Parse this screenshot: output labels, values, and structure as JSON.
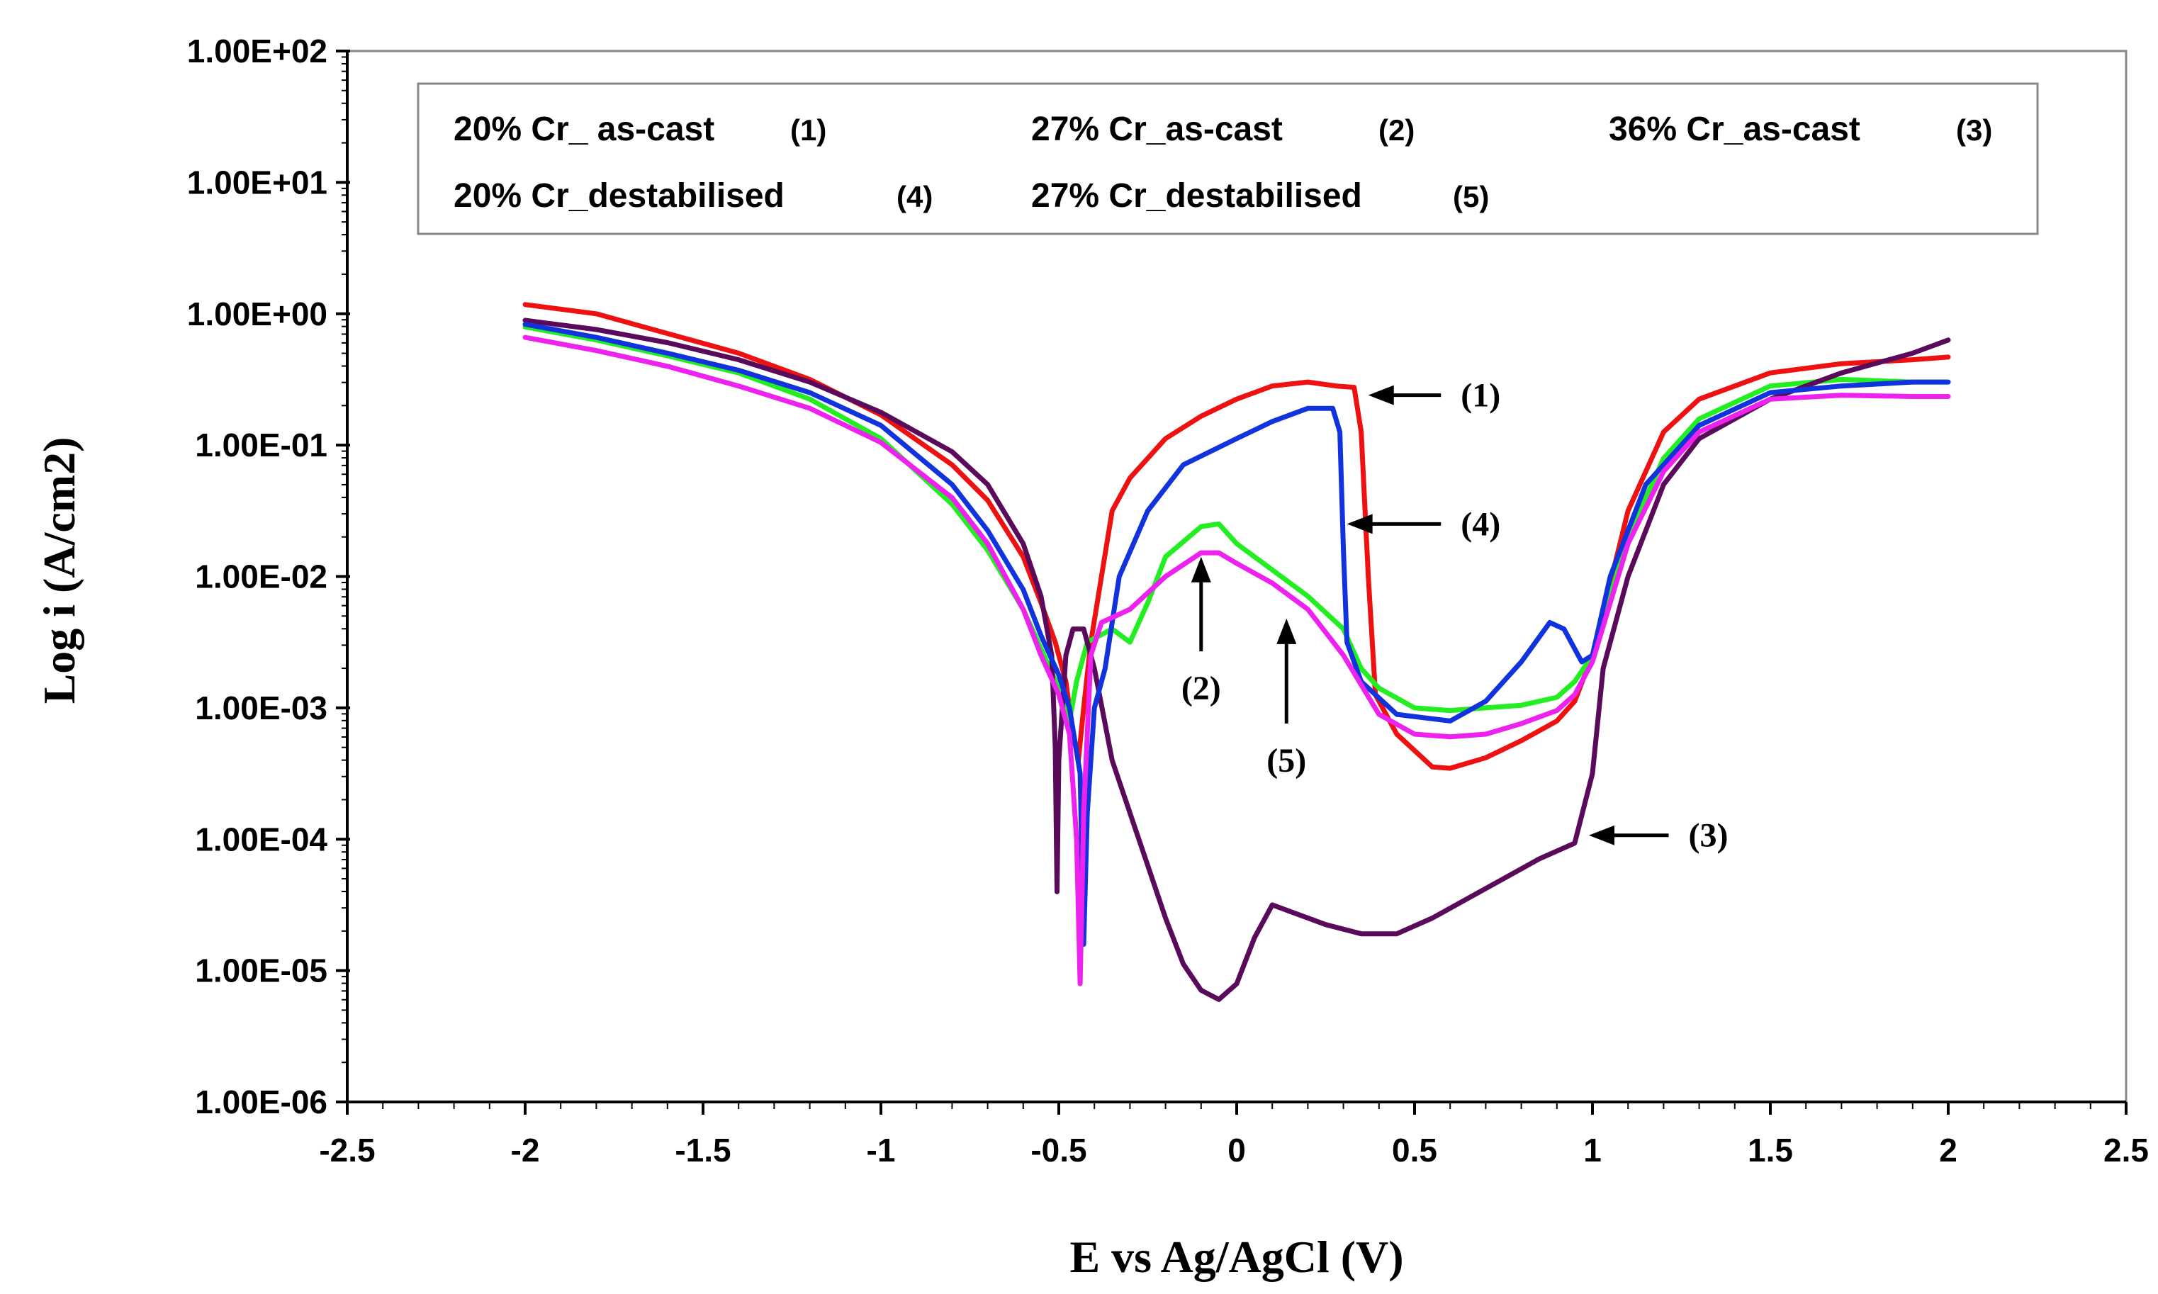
{
  "chart_data": {
    "type": "line",
    "title": "",
    "xlabel": "E vs Ag/AgCl (V)",
    "ylabel": "Log i (A/cm2)",
    "xlim": [
      -2.5,
      2.5
    ],
    "ylim_log10": [
      -6,
      2
    ],
    "x_ticks": [
      -2.5,
      -2,
      -1.5,
      -1,
      -0.5,
      0,
      0.5,
      1,
      1.5,
      2,
      2.5
    ],
    "x_tick_labels": [
      "-2.5",
      "-2",
      "-1.5",
      "-1",
      "-0.5",
      "0",
      "0.5",
      "1",
      "1.5",
      "2",
      "2.5"
    ],
    "y_ticks_log10": [
      2,
      1,
      0,
      -1,
      -2,
      -3,
      -4,
      -5,
      -6
    ],
    "y_tick_labels": [
      "1.00E+02",
      "1.00E+01",
      "1.00E+00",
      "1.00E-01",
      "1.00E-02",
      "1.00E-03",
      "1.00E-04",
      "1.00E-05",
      "1.00E-06"
    ],
    "legend": {
      "placement": "top",
      "entries": [
        {
          "label": "20% Cr_ as-cast",
          "number": "(1)"
        },
        {
          "label": "27% Cr_as-cast",
          "number": "(2)"
        },
        {
          "label": "36% Cr_as-cast",
          "number": "(3)"
        },
        {
          "label": "20% Cr_destabilised",
          "number": "(4)"
        },
        {
          "label": "27% Cr_destabilised",
          "number": "(5)"
        }
      ]
    },
    "series": [
      {
        "name": "20% Cr_ as-cast (1)",
        "color": "#ee1111",
        "points": [
          [
            -2.0,
            0.07
          ],
          [
            -1.8,
            0.0
          ],
          [
            -1.6,
            -0.15
          ],
          [
            -1.4,
            -0.3
          ],
          [
            -1.2,
            -0.5
          ],
          [
            -1.0,
            -0.77
          ],
          [
            -0.8,
            -1.15
          ],
          [
            -0.7,
            -1.42
          ],
          [
            -0.6,
            -1.85
          ],
          [
            -0.55,
            -2.2
          ],
          [
            -0.51,
            -2.5
          ],
          [
            -0.48,
            -2.8
          ],
          [
            -0.46,
            -3.2
          ],
          [
            -0.445,
            -3.4
          ],
          [
            -0.43,
            -3.0
          ],
          [
            -0.41,
            -2.5
          ],
          [
            -0.38,
            -2.0
          ],
          [
            -0.35,
            -1.5
          ],
          [
            -0.3,
            -1.25
          ],
          [
            -0.2,
            -0.95
          ],
          [
            -0.1,
            -0.78
          ],
          [
            0.0,
            -0.65
          ],
          [
            0.1,
            -0.55
          ],
          [
            0.2,
            -0.52
          ],
          [
            0.28,
            -0.55
          ],
          [
            0.33,
            -0.56
          ],
          [
            0.35,
            -0.9
          ],
          [
            0.37,
            -2.0
          ],
          [
            0.39,
            -2.9
          ],
          [
            0.45,
            -3.2
          ],
          [
            0.55,
            -3.45
          ],
          [
            0.6,
            -3.46
          ],
          [
            0.7,
            -3.38
          ],
          [
            0.8,
            -3.25
          ],
          [
            0.9,
            -3.1
          ],
          [
            0.95,
            -2.95
          ],
          [
            1.0,
            -2.6
          ],
          [
            1.1,
            -1.5
          ],
          [
            1.2,
            -0.9
          ],
          [
            1.3,
            -0.65
          ],
          [
            1.5,
            -0.45
          ],
          [
            1.7,
            -0.38
          ],
          [
            1.9,
            -0.35
          ],
          [
            2.0,
            -0.33
          ]
        ]
      },
      {
        "name": "27% Cr_as-cast (2)",
        "color": "#22ee22",
        "points": [
          [
            -2.0,
            -0.1
          ],
          [
            -1.8,
            -0.2
          ],
          [
            -1.6,
            -0.32
          ],
          [
            -1.4,
            -0.45
          ],
          [
            -1.2,
            -0.65
          ],
          [
            -1.0,
            -0.95
          ],
          [
            -0.8,
            -1.45
          ],
          [
            -0.7,
            -1.8
          ],
          [
            -0.6,
            -2.25
          ],
          [
            -0.55,
            -2.55
          ],
          [
            -0.5,
            -2.85
          ],
          [
            -0.47,
            -3.1
          ],
          [
            -0.45,
            -2.8
          ],
          [
            -0.42,
            -2.5
          ],
          [
            -0.35,
            -2.4
          ],
          [
            -0.3,
            -2.5
          ],
          [
            -0.25,
            -2.2
          ],
          [
            -0.2,
            -1.85
          ],
          [
            -0.1,
            -1.62
          ],
          [
            -0.05,
            -1.6
          ],
          [
            0.0,
            -1.75
          ],
          [
            0.1,
            -1.95
          ],
          [
            0.2,
            -2.15
          ],
          [
            0.3,
            -2.4
          ],
          [
            0.35,
            -2.7
          ],
          [
            0.4,
            -2.85
          ],
          [
            0.5,
            -3.0
          ],
          [
            0.6,
            -3.02
          ],
          [
            0.7,
            -3.0
          ],
          [
            0.8,
            -2.98
          ],
          [
            0.9,
            -2.92
          ],
          [
            0.95,
            -2.8
          ],
          [
            1.0,
            -2.6
          ],
          [
            1.1,
            -1.7
          ],
          [
            1.2,
            -1.1
          ],
          [
            1.3,
            -0.8
          ],
          [
            1.5,
            -0.55
          ],
          [
            1.7,
            -0.5
          ],
          [
            1.9,
            -0.52
          ],
          [
            2.0,
            -0.52
          ]
        ]
      },
      {
        "name": "36% Cr_as-cast (3)",
        "color": "#5a0a5a",
        "points": [
          [
            -2.0,
            -0.05
          ],
          [
            -1.8,
            -0.12
          ],
          [
            -1.6,
            -0.22
          ],
          [
            -1.4,
            -0.35
          ],
          [
            -1.2,
            -0.52
          ],
          [
            -1.0,
            -0.75
          ],
          [
            -0.8,
            -1.05
          ],
          [
            -0.7,
            -1.3
          ],
          [
            -0.6,
            -1.75
          ],
          [
            -0.55,
            -2.15
          ],
          [
            -0.52,
            -2.6
          ],
          [
            -0.51,
            -3.3
          ],
          [
            -0.505,
            -4.4
          ],
          [
            -0.5,
            -3.4
          ],
          [
            -0.48,
            -2.6
          ],
          [
            -0.46,
            -2.4
          ],
          [
            -0.43,
            -2.4
          ],
          [
            -0.4,
            -2.7
          ],
          [
            -0.35,
            -3.4
          ],
          [
            -0.3,
            -3.8
          ],
          [
            -0.25,
            -4.2
          ],
          [
            -0.2,
            -4.6
          ],
          [
            -0.15,
            -4.95
          ],
          [
            -0.1,
            -5.15
          ],
          [
            -0.05,
            -5.22
          ],
          [
            0.0,
            -5.1
          ],
          [
            0.05,
            -4.75
          ],
          [
            0.1,
            -4.5
          ],
          [
            0.15,
            -4.55
          ],
          [
            0.25,
            -4.65
          ],
          [
            0.35,
            -4.72
          ],
          [
            0.45,
            -4.72
          ],
          [
            0.55,
            -4.6
          ],
          [
            0.65,
            -4.45
          ],
          [
            0.75,
            -4.3
          ],
          [
            0.85,
            -4.15
          ],
          [
            0.95,
            -4.03
          ],
          [
            1.0,
            -3.5
          ],
          [
            1.03,
            -2.7
          ],
          [
            1.1,
            -2.0
          ],
          [
            1.2,
            -1.3
          ],
          [
            1.3,
            -0.95
          ],
          [
            1.5,
            -0.65
          ],
          [
            1.7,
            -0.45
          ],
          [
            1.9,
            -0.3
          ],
          [
            2.0,
            -0.2
          ]
        ]
      },
      {
        "name": "20% Cr_destabilised (4)",
        "color": "#1133dd",
        "points": [
          [
            -2.0,
            -0.08
          ],
          [
            -1.8,
            -0.18
          ],
          [
            -1.6,
            -0.3
          ],
          [
            -1.4,
            -0.43
          ],
          [
            -1.2,
            -0.6
          ],
          [
            -1.0,
            -0.85
          ],
          [
            -0.8,
            -1.3
          ],
          [
            -0.7,
            -1.65
          ],
          [
            -0.6,
            -2.1
          ],
          [
            -0.55,
            -2.45
          ],
          [
            -0.5,
            -2.75
          ],
          [
            -0.47,
            -3.0
          ],
          [
            -0.44,
            -3.5
          ],
          [
            -0.43,
            -4.8
          ],
          [
            -0.42,
            -3.8
          ],
          [
            -0.4,
            -3.0
          ],
          [
            -0.37,
            -2.7
          ],
          [
            -0.33,
            -2.0
          ],
          [
            -0.25,
            -1.5
          ],
          [
            -0.15,
            -1.15
          ],
          [
            0.0,
            -0.95
          ],
          [
            0.1,
            -0.82
          ],
          [
            0.2,
            -0.72
          ],
          [
            0.27,
            -0.72
          ],
          [
            0.29,
            -0.9
          ],
          [
            0.3,
            -1.8
          ],
          [
            0.31,
            -2.5
          ],
          [
            0.35,
            -2.8
          ],
          [
            0.45,
            -3.05
          ],
          [
            0.6,
            -3.1
          ],
          [
            0.7,
            -2.95
          ],
          [
            0.8,
            -2.65
          ],
          [
            0.88,
            -2.35
          ],
          [
            0.92,
            -2.4
          ],
          [
            0.97,
            -2.65
          ],
          [
            1.0,
            -2.6
          ],
          [
            1.05,
            -2.0
          ],
          [
            1.15,
            -1.3
          ],
          [
            1.3,
            -0.85
          ],
          [
            1.5,
            -0.6
          ],
          [
            1.7,
            -0.55
          ],
          [
            1.9,
            -0.52
          ],
          [
            2.0,
            -0.52
          ]
        ]
      },
      {
        "name": "27% Cr_destabilised (5)",
        "color": "#ee22ee",
        "points": [
          [
            -2.0,
            -0.18
          ],
          [
            -1.8,
            -0.28
          ],
          [
            -1.6,
            -0.4
          ],
          [
            -1.4,
            -0.55
          ],
          [
            -1.2,
            -0.72
          ],
          [
            -1.0,
            -0.98
          ],
          [
            -0.8,
            -1.4
          ],
          [
            -0.7,
            -1.75
          ],
          [
            -0.6,
            -2.25
          ],
          [
            -0.55,
            -2.6
          ],
          [
            -0.5,
            -2.9
          ],
          [
            -0.47,
            -3.2
          ],
          [
            -0.45,
            -4.0
          ],
          [
            -0.44,
            -5.1
          ],
          [
            -0.43,
            -3.8
          ],
          [
            -0.41,
            -2.6
          ],
          [
            -0.38,
            -2.35
          ],
          [
            -0.3,
            -2.25
          ],
          [
            -0.2,
            -2.0
          ],
          [
            -0.1,
            -1.82
          ],
          [
            -0.05,
            -1.82
          ],
          [
            0.0,
            -1.9
          ],
          [
            0.1,
            -2.05
          ],
          [
            0.2,
            -2.25
          ],
          [
            0.3,
            -2.6
          ],
          [
            0.4,
            -3.05
          ],
          [
            0.5,
            -3.2
          ],
          [
            0.6,
            -3.22
          ],
          [
            0.7,
            -3.2
          ],
          [
            0.8,
            -3.12
          ],
          [
            0.9,
            -3.02
          ],
          [
            0.95,
            -2.9
          ],
          [
            1.0,
            -2.65
          ],
          [
            1.1,
            -1.75
          ],
          [
            1.2,
            -1.2
          ],
          [
            1.3,
            -0.9
          ],
          [
            1.5,
            -0.65
          ],
          [
            1.7,
            -0.62
          ],
          [
            1.9,
            -0.63
          ],
          [
            2.0,
            -0.63
          ]
        ]
      }
    ],
    "annotations": [
      {
        "label": "(1)",
        "target": [
          0.37,
          -0.62
        ],
        "text_pos": [
          0.63,
          -0.62
        ],
        "direction": "left"
      },
      {
        "label": "(4)",
        "target": [
          0.31,
          -1.6
        ],
        "text_pos": [
          0.63,
          -1.6
        ],
        "direction": "left"
      },
      {
        "label": "(2)",
        "target": [
          -0.1,
          -1.85
        ],
        "text_pos": [
          -0.1,
          -2.85
        ],
        "direction": "up"
      },
      {
        "label": "(5)",
        "target": [
          0.14,
          -2.32
        ],
        "text_pos": [
          0.14,
          -3.4
        ],
        "direction": "up"
      },
      {
        "label": "(3)",
        "target": [
          0.99,
          -3.97
        ],
        "text_pos": [
          1.27,
          -3.97
        ],
        "direction": "left"
      }
    ]
  }
}
